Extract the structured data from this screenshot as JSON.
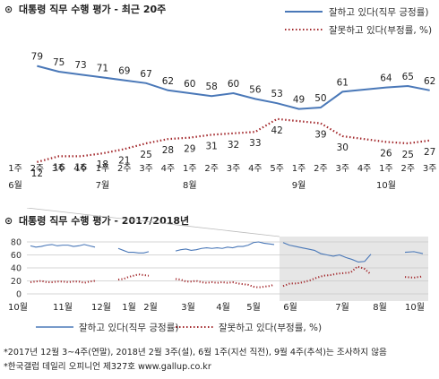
{
  "main": {
    "title": "대통령 직무 수행 평가 - 최근 20주",
    "marker": "⊙",
    "colors": {
      "positive": "#4a78b8",
      "negative": "#a3282c"
    }
  },
  "overview": {
    "title": "대통령 직무 수행 평가 - 2017/2018년",
    "marker": "⊙"
  },
  "footnotes": {
    "line1": "*2017년 12월 3~4주(연말), 2018년 2월 3주(설), 6월 1주(지선 직전), 9월 4주(추석)는 조사하지 않음",
    "line2": "*한국갤럽 데일리 오피니언 제327호 www.gallup.co.kr"
  },
  "chart_data": [
    {
      "type": "line",
      "title": "대통령 직무 수행 평가 - 최근 20주",
      "categories": [
        "1주 6월",
        "2주",
        "3주",
        "4주",
        "1주 7월",
        "2주",
        "3주",
        "4주",
        "1주 8월",
        "2주",
        "3주",
        "4주",
        "5주",
        "1주 9월",
        "2주",
        "3주",
        "4주",
        "1주 10월",
        "2주",
        "3주"
      ],
      "tick_labels": [
        {
          "week": "1주",
          "month": "6월"
        },
        {
          "week": "2주",
          "month": ""
        },
        {
          "week": "3주",
          "month": ""
        },
        {
          "week": "4주",
          "month": ""
        },
        {
          "week": "1주",
          "month": "7월"
        },
        {
          "week": "2주",
          "month": ""
        },
        {
          "week": "3주",
          "month": ""
        },
        {
          "week": "4주",
          "month": ""
        },
        {
          "week": "1주",
          "month": "8월"
        },
        {
          "week": "2주",
          "month": ""
        },
        {
          "week": "3주",
          "month": ""
        },
        {
          "week": "4주",
          "month": ""
        },
        {
          "week": "5주",
          "month": ""
        },
        {
          "week": "1주",
          "month": "9월"
        },
        {
          "week": "2주",
          "month": ""
        },
        {
          "week": "3주",
          "month": ""
        },
        {
          "week": "4주",
          "month": ""
        },
        {
          "week": "1주",
          "month": "10월"
        },
        {
          "week": "2주",
          "month": ""
        },
        {
          "week": "3주",
          "month": ""
        }
      ],
      "series": [
        {
          "name": "잘하고 있다(직무 긍정률)",
          "style": "solid",
          "color": "#4a78b8",
          "values": [
            null,
            79,
            75,
            73,
            71,
            69,
            67,
            62,
            60,
            58,
            60,
            56,
            53,
            49,
            50,
            61,
            null,
            64,
            65,
            62
          ]
        },
        {
          "name": "잘못하고 있다(부정률, %)",
          "style": "dotted",
          "color": "#a3282c",
          "values": [
            null,
            12,
            16,
            16,
            18,
            21,
            25,
            28,
            29,
            31,
            32,
            33,
            42,
            null,
            39,
            30,
            null,
            26,
            25,
            27
          ]
        }
      ],
      "ylim": [
        0,
        100
      ],
      "legend": "top-right",
      "grid": false
    },
    {
      "type": "line",
      "title": "대통령 직무 수행 평가 - 2017/2018년",
      "month_labels": [
        "10월",
        "11월",
        "12월",
        "1월",
        "2월",
        "3월",
        "4월",
        "5월",
        "6월",
        "7월",
        "8월",
        "9월",
        "10월"
      ],
      "y_ticks": [
        0,
        20,
        40,
        60,
        80
      ],
      "ylim": [
        0,
        90
      ],
      "series": [
        {
          "name": "잘하고 있다(직무 긍정률)",
          "style": "solid",
          "color": "#4a78b8",
          "segments": [
            [
              74,
              72,
              73,
              75,
              76,
              74,
              75,
              75,
              73,
              74,
              76,
              74,
              72
            ],
            [
              70,
              67,
              64,
              64,
              63,
              63,
              65
            ],
            [
              66,
              68,
              69,
              67,
              68,
              70,
              71,
              70,
              71,
              70,
              72,
              71,
              73,
              73,
              75,
              79,
              80,
              78,
              77,
              76
            ],
            [
              79,
              75,
              73,
              71,
              69,
              67,
              62,
              60,
              58,
              60,
              56,
              53,
              49,
              50,
              61
            ],
            [
              64,
              65,
              62
            ]
          ]
        },
        {
          "name": "잘못하고 있다(부정률, %)",
          "style": "dotted",
          "color": "#a3282c",
          "segments": [
            [
              18,
              19,
              20,
              18,
              18,
              19,
              19,
              18,
              19,
              19,
              17,
              19,
              20
            ],
            [
              22,
              23,
              26,
              28,
              30,
              29,
              28
            ],
            [
              23,
              22,
              19,
              19,
              20,
              18,
              17,
              18,
              17,
              18,
              17,
              18,
              16,
              15,
              14,
              11,
              10,
              11,
              12,
              14
            ],
            [
              12,
              16,
              16,
              18,
              21,
              25,
              28,
              29,
              31,
              32,
              33,
              42,
              39,
              30
            ],
            [
              26,
              25,
              27
            ]
          ]
        }
      ],
      "highlight": "last 20 weeks",
      "legend": "bottom",
      "grid": true
    }
  ]
}
